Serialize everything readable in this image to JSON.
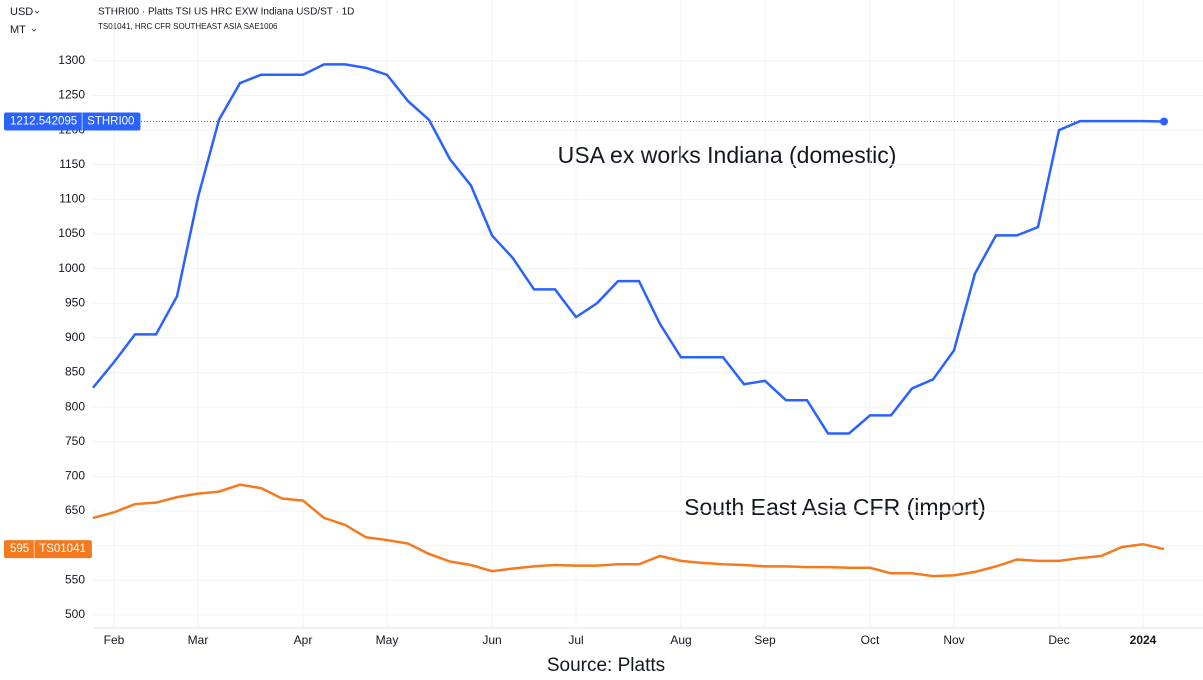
{
  "chart_data": {
    "type": "line",
    "subtitle": [
      "STHRI00 · Platts TSI US HRC EXW Indiana USD/ST · 1D",
      "TS01041, HRC CFR SOUTHEAST ASIA SAE1006"
    ],
    "y_unit": [
      "USD",
      "MT"
    ],
    "annotations": [
      "USA ex works Indiana (domestic)",
      "South East Asia CFR (import)"
    ],
    "source": "Source: Platts",
    "categories": [
      null,
      "Feb",
      null,
      null,
      null,
      "Mar",
      null,
      null,
      null,
      null,
      "Apr",
      null,
      null,
      null,
      "May",
      null,
      null,
      null,
      null,
      "Jun",
      null,
      null,
      null,
      "Jul",
      null,
      null,
      null,
      null,
      "Aug",
      null,
      null,
      null,
      "Sep",
      null,
      null,
      null,
      null,
      "Oct",
      null,
      null,
      null,
      "Nov",
      null,
      null,
      null,
      null,
      "Dec",
      null,
      null,
      null,
      "2024",
      null
    ],
    "series": [
      {
        "name": "STHRI00",
        "color": "#2962ff",
        "values": [
          828,
          865,
          905,
          905,
          960,
          1103,
          1215,
          1268,
          1280,
          1280,
          1280,
          1295,
          1295,
          1290,
          1280,
          1242,
          1215,
          1158,
          1120,
          1048,
          1015,
          970,
          970,
          930,
          950,
          982,
          982,
          920,
          872,
          872,
          872,
          833,
          838,
          810,
          810,
          762,
          762,
          788,
          788,
          827,
          840,
          882,
          993,
          1048,
          1048,
          1060,
          1200,
          1213,
          1213,
          1213,
          1213,
          1212.542095
        ]
      },
      {
        "name": "TS01041",
        "color": "#f57a1f",
        "values": [
          640,
          648,
          660,
          662,
          670,
          675,
          678,
          688,
          683,
          668,
          665,
          640,
          630,
          612,
          608,
          603,
          588,
          577,
          572,
          563,
          567,
          570,
          572,
          571,
          571,
          573,
          573,
          585,
          578,
          575,
          573,
          572,
          570,
          570,
          569,
          569,
          568,
          568,
          560,
          560,
          556,
          557,
          562,
          570,
          580,
          578,
          578,
          582,
          585,
          598,
          602,
          595
        ]
      }
    ],
    "ylim": [
      481,
      1388
    ],
    "yticks": [
      500,
      550,
      600,
      650,
      700,
      750,
      800,
      850,
      900,
      950,
      1000,
      1050,
      1100,
      1150,
      1200,
      1250,
      1300
    ],
    "grid": true
  }
}
